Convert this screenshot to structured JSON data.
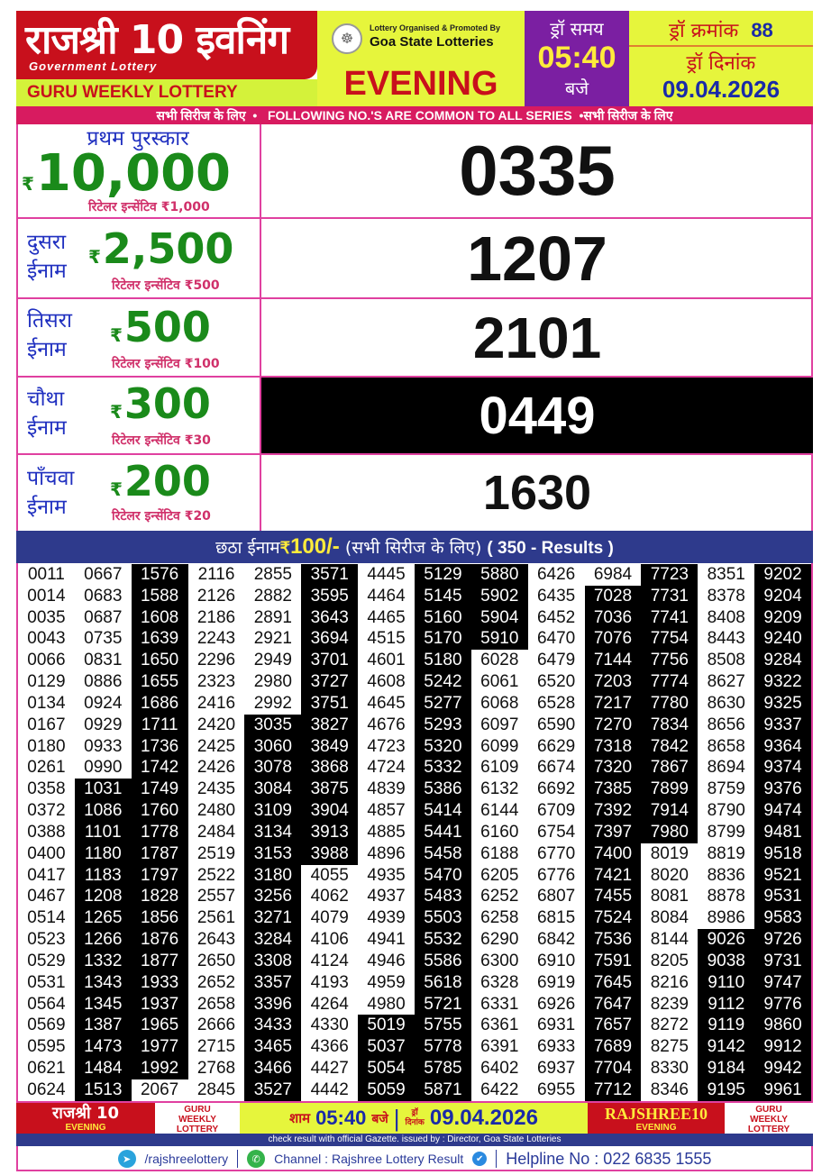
{
  "header": {
    "title_hindi": "राजश्री 10 इवनिंग",
    "subtitle": "Government Lottery",
    "lottery_name": "GURU WEEKLY LOTTERY",
    "organised_by": "Lottery Organised & Promoted By",
    "organiser": "Goa State Lotteries",
    "session": "EVENING",
    "draw_time_label": "ड्रॉ समय",
    "draw_time": "05:40",
    "draw_time_suffix": "बजे",
    "draw_no_label": "ड्रॉ क्रमांक",
    "draw_no": "88",
    "draw_date_label": "ड्रॉ दिनांक",
    "draw_date": "09.04.2026"
  },
  "banner": {
    "left": "सभी सिरीज के लिए",
    "center": "FOLLOWING NO.'S ARE COMMON TO ALL SERIES",
    "right": "सभी सिरीज के लिए"
  },
  "currency": "₹",
  "prizes": [
    {
      "name": "प्रथम पुरस्कार",
      "amount": "10,000",
      "incentive_label": "रिटेलर इन्सेंटिव",
      "incentive": "1,000",
      "number": "0335"
    },
    {
      "name1": "दुसरा",
      "name2": "ईनाम",
      "amount": "2,500",
      "incentive_label": "रिटेलर इन्सेंटिव",
      "incentive": "500",
      "number": "1207"
    },
    {
      "name1": "तिसरा",
      "name2": "ईनाम",
      "amount": "500",
      "incentive_label": "रिटेलर इन्सेंटिव",
      "incentive": "100",
      "number": "2101"
    },
    {
      "name1": "चौथा",
      "name2": "ईनाम",
      "amount": "300",
      "incentive_label": "रिटेलर इन्सेंटिव",
      "incentive": "30",
      "number": "0449"
    },
    {
      "name1": "पाँचवा",
      "name2": "ईनाम",
      "amount": "200",
      "incentive_label": "रिटेलर इन्सेंटिव",
      "incentive": "20",
      "number": "1630"
    }
  ],
  "sixth_prize": {
    "label": "छठा ईनाम",
    "amount": "100/-",
    "note": "(सभी सिरीज के लिए)",
    "count": "( 350 - Results )"
  },
  "results_columns": [
    {
      "numbers": [
        "0011",
        "0014",
        "0035",
        "0043",
        "0066",
        "0129",
        "0134",
        "0167",
        "0180",
        "0261",
        "0358",
        "0372",
        "0388",
        "0400",
        "0417",
        "0467",
        "0514",
        "0523",
        "0529",
        "0531",
        "0564",
        "0569",
        "0595",
        "0621",
        "0624"
      ],
      "highlighted_rows": null
    },
    {
      "numbers": [
        "0667",
        "0683",
        "0687",
        "0735",
        "0831",
        "0886",
        "0924",
        "0929",
        "0933",
        "0990",
        "1031",
        "1086",
        "1101",
        "1180",
        "1183",
        "1208",
        "1265",
        "1266",
        "1332",
        "1343",
        "1345",
        "1387",
        "1473",
        "1484",
        "1513"
      ],
      "highlighted_rows": [
        10,
        24
      ]
    },
    {
      "numbers": [
        "1576",
        "1588",
        "1608",
        "1639",
        "1650",
        "1655",
        "1686",
        "1711",
        "1736",
        "1742",
        "1749",
        "1760",
        "1778",
        "1787",
        "1797",
        "1828",
        "1856",
        "1876",
        "1877",
        "1933",
        "1937",
        "1965",
        "1977",
        "1992",
        "2067"
      ],
      "highlighted_rows": [
        0,
        23
      ]
    },
    {
      "numbers": [
        "2116",
        "2126",
        "2186",
        "2243",
        "2296",
        "2323",
        "2416",
        "2420",
        "2425",
        "2426",
        "2435",
        "2480",
        "2484",
        "2519",
        "2522",
        "2557",
        "2561",
        "2643",
        "2650",
        "2652",
        "2658",
        "2666",
        "2715",
        "2768",
        "2845"
      ],
      "highlighted_rows": null
    },
    {
      "numbers": [
        "2855",
        "2882",
        "2891",
        "2921",
        "2949",
        "2980",
        "2992",
        "3035",
        "3060",
        "3078",
        "3084",
        "3109",
        "3134",
        "3153",
        "3180",
        "3256",
        "3271",
        "3284",
        "3308",
        "3357",
        "3396",
        "3433",
        "3465",
        "3466",
        "3527"
      ],
      "highlighted_rows": [
        7,
        24
      ]
    },
    {
      "numbers": [
        "3571",
        "3595",
        "3643",
        "3694",
        "3701",
        "3727",
        "3751",
        "3827",
        "3849",
        "3868",
        "3875",
        "3904",
        "3913",
        "3988",
        "4055",
        "4062",
        "4079",
        "4106",
        "4124",
        "4193",
        "4264",
        "4330",
        "4366",
        "4427",
        "4442"
      ],
      "highlighted_rows": [
        0,
        13
      ]
    },
    {
      "numbers": [
        "4445",
        "4464",
        "4465",
        "4515",
        "4601",
        "4608",
        "4645",
        "4676",
        "4723",
        "4724",
        "4839",
        "4857",
        "4885",
        "4896",
        "4935",
        "4937",
        "4939",
        "4941",
        "4946",
        "4959",
        "4980",
        "5019",
        "5037",
        "5054",
        "5059"
      ],
      "highlighted_rows": [
        21,
        24
      ]
    },
    {
      "numbers": [
        "5129",
        "5145",
        "5160",
        "5170",
        "5180",
        "5242",
        "5277",
        "5293",
        "5320",
        "5332",
        "5386",
        "5414",
        "5441",
        "5458",
        "5470",
        "5483",
        "5503",
        "5532",
        "5586",
        "5618",
        "5721",
        "5755",
        "5778",
        "5785",
        "5871"
      ],
      "highlighted_rows": [
        0,
        24
      ]
    },
    {
      "numbers": [
        "5880",
        "5902",
        "5904",
        "5910",
        "6028",
        "6061",
        "6068",
        "6097",
        "6099",
        "6109",
        "6132",
        "6144",
        "6160",
        "6188",
        "6205",
        "6252",
        "6258",
        "6290",
        "6300",
        "6328",
        "6331",
        "6361",
        "6391",
        "6402",
        "6422"
      ],
      "highlighted_rows": [
        0,
        3
      ]
    },
    {
      "numbers": [
        "6426",
        "6435",
        "6452",
        "6470",
        "6479",
        "6520",
        "6528",
        "6590",
        "6629",
        "6674",
        "6692",
        "6709",
        "6754",
        "6770",
        "6776",
        "6807",
        "6815",
        "6842",
        "6910",
        "6919",
        "6926",
        "6931",
        "6933",
        "6937",
        "6955"
      ],
      "highlighted_rows": null
    },
    {
      "numbers": [
        "6984",
        "7028",
        "7036",
        "7076",
        "7144",
        "7203",
        "7217",
        "7270",
        "7318",
        "7320",
        "7385",
        "7392",
        "7397",
        "7400",
        "7421",
        "7455",
        "7524",
        "7536",
        "7591",
        "7645",
        "7647",
        "7657",
        "7689",
        "7704",
        "7712"
      ],
      "highlighted_rows": [
        1,
        24
      ]
    },
    {
      "numbers": [
        "7723",
        "7731",
        "7741",
        "7754",
        "7756",
        "7774",
        "7780",
        "7834",
        "7842",
        "7867",
        "7899",
        "7914",
        "7980",
        "8019",
        "8020",
        "8081",
        "8084",
        "8144",
        "8205",
        "8216",
        "8239",
        "8272",
        "8275",
        "8330",
        "8346"
      ],
      "highlighted_rows": [
        0,
        12
      ]
    },
    {
      "numbers": [
        "8351",
        "8378",
        "8408",
        "8443",
        "8508",
        "8627",
        "8630",
        "8656",
        "8658",
        "8694",
        "8759",
        "8790",
        "8799",
        "8819",
        "8836",
        "8878",
        "8986",
        "9026",
        "9038",
        "9110",
        "9112",
        "9119",
        "9142",
        "9184",
        "9195"
      ],
      "highlighted_rows": [
        17,
        24
      ]
    },
    {
      "numbers": [
        "9202",
        "9204",
        "9209",
        "9240",
        "9284",
        "9322",
        "9325",
        "9337",
        "9364",
        "9374",
        "9376",
        "9474",
        "9481",
        "9518",
        "9521",
        "9531",
        "9583",
        "9726",
        "9731",
        "9747",
        "9776",
        "9860",
        "9912",
        "9942",
        "9961"
      ],
      "highlighted_rows": [
        0,
        24
      ]
    }
  ],
  "footer": {
    "brand_hindi": "राजश्री 10",
    "brand_sub": "EVENING",
    "guru1": "GURU",
    "guru2": "WEEKLY",
    "guru3": "LOTTERY",
    "time_prefix": "शाम",
    "time": "05:40",
    "time_suffix": "बजे",
    "date_label1": "ड्रॉ",
    "date_label2": "दिनांक",
    "date": "09.04.2026",
    "brand_en": "RAJSHREE10",
    "gazette_note": "check result with official Gazette. issued by : Director, Goa State Lotteries",
    "telegram": "/rajshreelottery",
    "whatsapp": "Channel : Rajshree Lottery Result",
    "helpline": "Helpline No : 022 6835 1555"
  },
  "colors": {
    "red": "#c8101c",
    "yellow": "#e6f53c",
    "purple": "#7b1fa2",
    "navy": "#2e3a8c",
    "pink": "#d81b60",
    "green": "#1a8a1a",
    "blue": "#1a2aa8"
  }
}
